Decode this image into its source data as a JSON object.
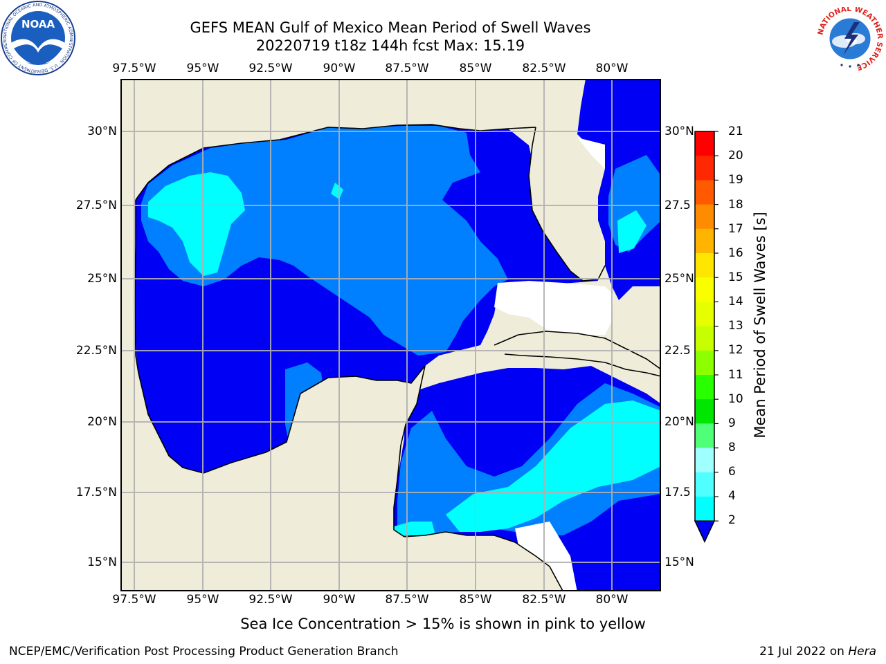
{
  "title": {
    "line1": "GEFS MEAN Gulf of Mexico Mean Period of Swell Waves",
    "line2": "20220719 t18z 144h fcst   Max: 15.19"
  },
  "map": {
    "lon_labels_top": [
      "97.5°W",
      "95°W",
      "92.5°W",
      "90°W",
      "87.5°W",
      "85°W",
      "82.5°W",
      "80°W"
    ],
    "lon_labels_bottom": [
      "97.5°W",
      "95°W",
      "92.5°W",
      "90°W",
      "87.5°W",
      "85°W",
      "82.5°W",
      "80°W"
    ],
    "lat_labels_left": [
      "30°N",
      "27.5°N",
      "25°N",
      "22.5°N",
      "20°N",
      "17.5°N",
      "15°N"
    ],
    "lat_labels_right": [
      "30°N",
      "27.5",
      "25°N",
      "22.5",
      "20°N",
      "17.5",
      "15°N"
    ],
    "colors": {
      "land": "#efedd9",
      "no_data": "#ffffff",
      "swell_2_4": "#0080ff",
      "swell_below_2": "#0000f5",
      "swell_4_6": "#00ffff",
      "ice_yellow": "#e6ff00",
      "ice_green": "#8cff00"
    }
  },
  "colorbar": {
    "label": "Mean Period of Swell Waves [s]",
    "ticks": [
      "21",
      "20",
      "19",
      "18",
      "17",
      "16",
      "15",
      "14",
      "13",
      "12",
      "11",
      "10",
      "9",
      "8",
      "6",
      "4",
      "2"
    ],
    "colors": [
      "#ff0000",
      "#ff2800",
      "#ff5a00",
      "#ff8c00",
      "#ffb400",
      "#ffe600",
      "#faff00",
      "#e6ff00",
      "#c8ff00",
      "#8cff00",
      "#28ff00",
      "#00e600",
      "#50ff78",
      "#a0ffff",
      "#50ffff",
      "#00ffff",
      "#0080ff"
    ],
    "extend_color": "#0000f5"
  },
  "note": "Sea Ice Concentration > 15% is shown in pink to yellow",
  "footer": {
    "left": "NCEP/EMC/Verification Post Processing Product Generation Branch",
    "right_prefix": "21 Jul 2022 on ",
    "right_italic": "Hera"
  },
  "logos": {
    "noaa_text": "NOAA",
    "noaa_ring": "NATIONAL OCEANIC AND ATMOSPHERIC ADMINISTRATION · U.S. DEPARTMENT OF COMMERCE",
    "nws_ring": "NATIONAL WEATHER SERVICE"
  }
}
